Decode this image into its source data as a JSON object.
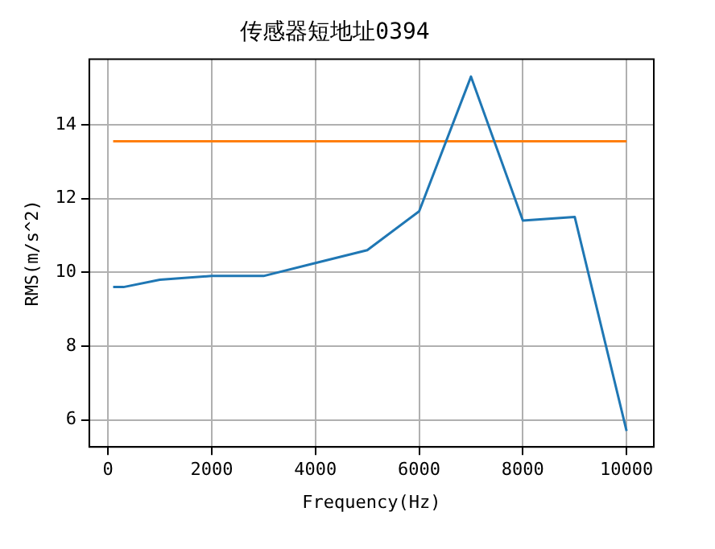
{
  "chart_data": {
    "type": "line",
    "title": "传感器短地址0394",
    "xlabel": "Frequency(Hz)",
    "ylabel": "RMS(m/s^2)",
    "series": [
      {
        "color": "#1f77b4",
        "x": [
          100,
          300,
          1000,
          2000,
          3000,
          4000,
          5000,
          6000,
          7000,
          8000,
          9000,
          10000
        ],
        "values": [
          9.6,
          9.6,
          9.8,
          9.9,
          9.9,
          10.25,
          10.6,
          11.65,
          15.3,
          11.4,
          11.5,
          5.7
        ]
      },
      {
        "color": "#ff7f0e",
        "x": [
          100,
          10000
        ],
        "values": [
          13.55,
          13.55
        ]
      }
    ],
    "xlim": [
      -360,
      10525
    ],
    "xticks": [
      0,
      2000,
      4000,
      6000,
      8000,
      10000
    ],
    "ylim": [
      5.27,
      15.77
    ],
    "yticks": [
      6,
      8,
      10,
      12,
      14
    ],
    "grid": true,
    "legend": false,
    "marker": "none",
    "line_style": "solid"
  }
}
